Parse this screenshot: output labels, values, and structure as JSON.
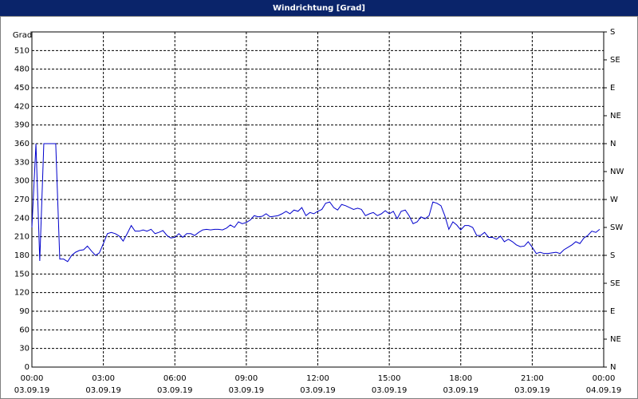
{
  "chart_data": {
    "type": "line",
    "title": "Windrichtung [Grad]",
    "y_label": "Grad",
    "x": [
      0,
      0.17,
      0.33,
      0.5,
      0.67,
      0.83,
      1,
      1.17,
      1.33,
      1.5,
      1.67,
      1.83,
      2,
      2.17,
      2.33,
      2.5,
      2.67,
      2.83,
      3,
      3.17,
      3.33,
      3.5,
      3.67,
      3.83,
      4,
      4.17,
      4.33,
      4.5,
      4.67,
      4.83,
      5,
      5.17,
      5.33,
      5.5,
      5.67,
      5.83,
      6,
      6.17,
      6.33,
      6.5,
      6.67,
      6.83,
      7,
      7.17,
      7.33,
      7.5,
      7.67,
      7.83,
      8,
      8.17,
      8.33,
      8.5,
      8.67,
      8.83,
      9,
      9.17,
      9.33,
      9.5,
      9.67,
      9.83,
      10,
      10.17,
      10.33,
      10.5,
      10.67,
      10.83,
      11,
      11.17,
      11.33,
      11.5,
      11.67,
      11.83,
      12,
      12.17,
      12.33,
      12.5,
      12.67,
      12.83,
      13,
      13.17,
      13.33,
      13.5,
      13.67,
      13.83,
      14,
      14.17,
      14.33,
      14.5,
      14.67,
      14.83,
      15,
      15.17,
      15.33,
      15.5,
      15.67,
      15.83,
      16,
      16.17,
      16.33,
      16.5,
      16.67,
      16.83,
      17,
      17.17,
      17.33,
      17.5,
      17.67,
      17.83,
      18,
      18.17,
      18.33,
      18.5,
      18.67,
      18.83,
      19,
      19.17,
      19.33,
      19.5,
      19.67,
      19.83,
      20,
      20.17,
      20.33,
      20.5,
      20.67,
      20.83,
      21,
      21.17,
      21.33,
      21.5,
      21.67,
      21.83,
      22,
      22.17,
      22.33,
      22.5,
      22.67,
      22.83,
      23,
      23.17,
      23.33,
      23.5,
      23.67,
      23.83
    ],
    "series": [
      {
        "name": "Windrichtung",
        "color": "#0000cc",
        "values": [
          225,
          360,
          171,
          360,
          360,
          360,
          360,
          174,
          174,
          170,
          180,
          185,
          188,
          189,
          195,
          187,
          180,
          184,
          199,
          215,
          217,
          215,
          211,
          203,
          215,
          228,
          219,
          219,
          221,
          219,
          222,
          215,
          217,
          220,
          212,
          208,
          209,
          215,
          209,
          215,
          215,
          212,
          217,
          221,
          222,
          221,
          222,
          222,
          221,
          224,
          229,
          225,
          234,
          231,
          233,
          237,
          244,
          242,
          243,
          247,
          242,
          243,
          244,
          247,
          251,
          247,
          253,
          251,
          257,
          244,
          249,
          247,
          251,
          254,
          264,
          266,
          257,
          253,
          262,
          260,
          257,
          254,
          256,
          254,
          244,
          247,
          249,
          244,
          247,
          252,
          247,
          251,
          239,
          251,
          253,
          244,
          231,
          234,
          242,
          239,
          244,
          266,
          264,
          260,
          244,
          222,
          234,
          229,
          221,
          228,
          228,
          225,
          212,
          212,
          217,
          209,
          209,
          206,
          211,
          202,
          206,
          202,
          197,
          194,
          195,
          202,
          193,
          183,
          185,
          183,
          183,
          184,
          185,
          183,
          189,
          193,
          197,
          202,
          199,
          208,
          212,
          219,
          217,
          222
        ]
      }
    ],
    "xlim": [
      0,
      24
    ],
    "xticks": [
      {
        "value": 0,
        "label": "00:00"
      },
      {
        "value": 3,
        "label": "03:00"
      },
      {
        "value": 6,
        "label": "06:00"
      },
      {
        "value": 9,
        "label": "09:00"
      },
      {
        "value": 12,
        "label": "12:00"
      },
      {
        "value": 15,
        "label": "15:00"
      },
      {
        "value": 18,
        "label": "18:00"
      },
      {
        "value": 21,
        "label": "21:00"
      },
      {
        "value": 24,
        "label": "00:00"
      }
    ],
    "xtick_dates": [
      "03.09.19",
      "03.09.19",
      "03.09.19",
      "03.09.19",
      "03.09.19",
      "03.09.19",
      "03.09.19",
      "03.09.19",
      "04.09.19"
    ],
    "ylim": [
      0,
      540
    ],
    "yticks": [
      0,
      30,
      60,
      90,
      120,
      150,
      180,
      210,
      240,
      270,
      300,
      330,
      360,
      390,
      420,
      450,
      480,
      510
    ],
    "y2lim": [
      0,
      540
    ],
    "y2ticks": [
      {
        "value": 0,
        "label": "N"
      },
      {
        "value": 45,
        "label": "NE"
      },
      {
        "value": 90,
        "label": "E"
      },
      {
        "value": 135,
        "label": "SE"
      },
      {
        "value": 180,
        "label": "S"
      },
      {
        "value": 225,
        "label": "SW"
      },
      {
        "value": 270,
        "label": "W"
      },
      {
        "value": 315,
        "label": "NW"
      },
      {
        "value": 360,
        "label": "N"
      },
      {
        "value": 405,
        "label": "NE"
      },
      {
        "value": 450,
        "label": "E"
      },
      {
        "value": 495,
        "label": "SE"
      },
      {
        "value": 540,
        "label": "S"
      }
    ],
    "grid": true
  }
}
